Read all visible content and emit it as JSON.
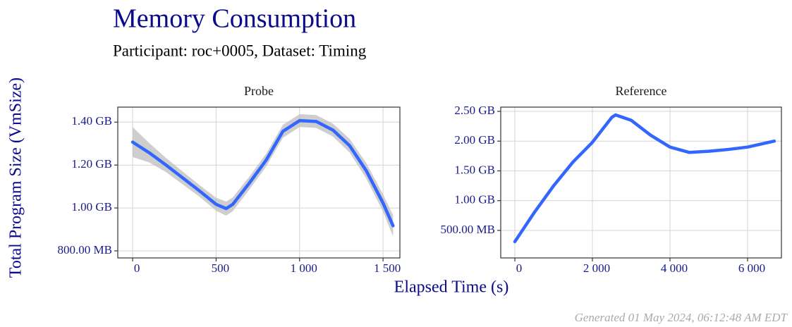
{
  "title": "Memory Consumption",
  "subtitle": "Participant: roc+0005, Dataset: Timing",
  "x_label": "Elapsed Time (s)",
  "y_label": "Total Program Size (VmSize)",
  "caption": "Generated 01 May 2024, 06:12:48 AM EDT",
  "chart_data": [
    {
      "type": "line",
      "title": "Probe",
      "color": "#3366ff",
      "band_color": "#bdbdbd",
      "x": [
        0,
        100,
        200,
        300,
        400,
        500,
        560,
        600,
        700,
        800,
        900,
        1000,
        1100,
        1200,
        1300,
        1400,
        1500,
        1560
      ],
      "values": [
        1307,
        1257,
        1200,
        1140,
        1080,
        1017,
        997,
        1017,
        1117,
        1223,
        1357,
        1407,
        1403,
        1363,
        1290,
        1173,
        1023,
        917
      ],
      "band": {
        "lower": [
          1237,
          1212,
          1167,
          1110,
          1053,
          987,
          964,
          985,
          1087,
          1193,
          1327,
          1377,
          1373,
          1333,
          1258,
          1137,
          983,
          867
        ],
        "upper": [
          1377,
          1302,
          1233,
          1170,
          1107,
          1047,
          1030,
          1049,
          1147,
          1253,
          1387,
          1437,
          1433,
          1393,
          1322,
          1209,
          1063,
          967
        ]
      },
      "xlim": [
        -89,
        1601
      ],
      "xticks": [
        0,
        500,
        {
          "value": 1000,
          "label": "1 000"
        },
        {
          "value": 1500,
          "label": "1 500"
        }
      ],
      "ylim": [
        767,
        1470
      ],
      "yticks": [
        {
          "value": 800,
          "label": "800.00 MB"
        },
        {
          "value": 1000,
          "label": "1.00 GB"
        },
        {
          "value": 1200,
          "label": "1.20 GB"
        },
        {
          "value": 1400,
          "label": "1.40 GB"
        }
      ],
      "grid": true
    },
    {
      "type": "line",
      "title": "Reference",
      "color": "#3366ff",
      "x": [
        0,
        500,
        1000,
        1500,
        2000,
        2500,
        2600,
        3000,
        3500,
        4000,
        4500,
        5000,
        5500,
        6000,
        6690
      ],
      "values": [
        311,
        800,
        1250,
        1650,
        1980,
        2400,
        2440,
        2350,
        2100,
        1900,
        1810,
        1830,
        1860,
        1900,
        2000
      ],
      "xlim": [
        -364,
        6873
      ],
      "xticks": [
        0,
        {
          "value": 2000,
          "label": "2 000"
        },
        {
          "value": 4000,
          "label": "4 000"
        },
        {
          "value": 6000,
          "label": "6 000"
        }
      ],
      "ylim": [
        38,
        2571
      ],
      "yticks": [
        {
          "value": 500,
          "label": "500.00 MB"
        },
        {
          "value": 1000,
          "label": "1.00 GB"
        },
        {
          "value": 1500,
          "label": "1.50 GB"
        },
        {
          "value": 2000,
          "label": "2.00 GB"
        },
        {
          "value": 2500,
          "label": "2.50 GB"
        }
      ],
      "grid": true
    }
  ]
}
